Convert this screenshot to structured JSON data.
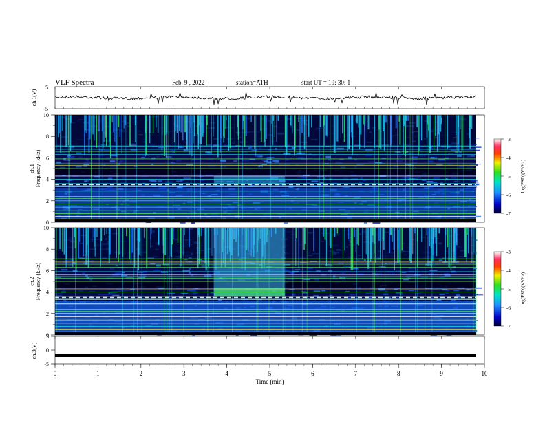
{
  "header": {
    "title": "VLF  Spectra",
    "date": "Feb. 9  , 2022",
    "station": "station=ATH",
    "start_ut": "start  UT  =   19: 30: 1"
  },
  "chart_data": [
    {
      "type": "line",
      "title": "",
      "ylabel": "ch.1(V)",
      "ylim": [
        -5,
        5
      ],
      "yticks": [
        "5",
        "-5"
      ],
      "xlim": [
        0,
        10
      ],
      "trace_level": 0.0
    },
    {
      "type": "heatmap",
      "ylabel": "ch.1\nFrequency  (kHz)",
      "ylim": [
        0,
        10
      ],
      "yticks": [
        "0",
        "2",
        "4",
        "6",
        "8",
        "10"
      ],
      "xlim": [
        0,
        10
      ],
      "colorbar": {
        "label": "log(PSD)(V²/Hz)",
        "ticks": [
          "-3",
          "-4",
          "-5",
          "-6",
          "-7"
        ],
        "range": [
          -7,
          -3
        ]
      }
    },
    {
      "type": "heatmap",
      "ylabel": "ch.2\nFrequency  (kHz)",
      "ylim": [
        0,
        10
      ],
      "yticks": [
        "0",
        "2",
        "4",
        "6",
        "8",
        "10"
      ],
      "xlim": [
        0,
        10
      ],
      "colorbar": {
        "label": "log(PSD)(V²/Hz)",
        "ticks": [
          "-3",
          "-4",
          "-5",
          "-6",
          "-7"
        ],
        "range": [
          -7,
          -3
        ]
      }
    },
    {
      "type": "line",
      "ylabel": "ch.3(V)",
      "ylim": [
        -5,
        5
      ],
      "yticks": [
        "5",
        "0",
        "-5"
      ],
      "xlim": [
        0,
        10
      ],
      "trace_level": -2.0,
      "xlabel": "Time  (min)",
      "xticks": [
        "0",
        "1",
        "2",
        "3",
        "4",
        "5",
        "6",
        "7",
        "8",
        "9",
        "10"
      ]
    }
  ],
  "labels": {
    "ch1_top": "ch.1",
    "ch1_freq": "Frequency  (kHz)",
    "ch2_top": "ch.2",
    "ch2_freq": "Frequency  (kHz)",
    "cb_label_1": "log(PSD)(V²/Hz)",
    "cb_label_2": "log(PSD)(V²/Hz)",
    "xlabel": "Time  (min)"
  }
}
